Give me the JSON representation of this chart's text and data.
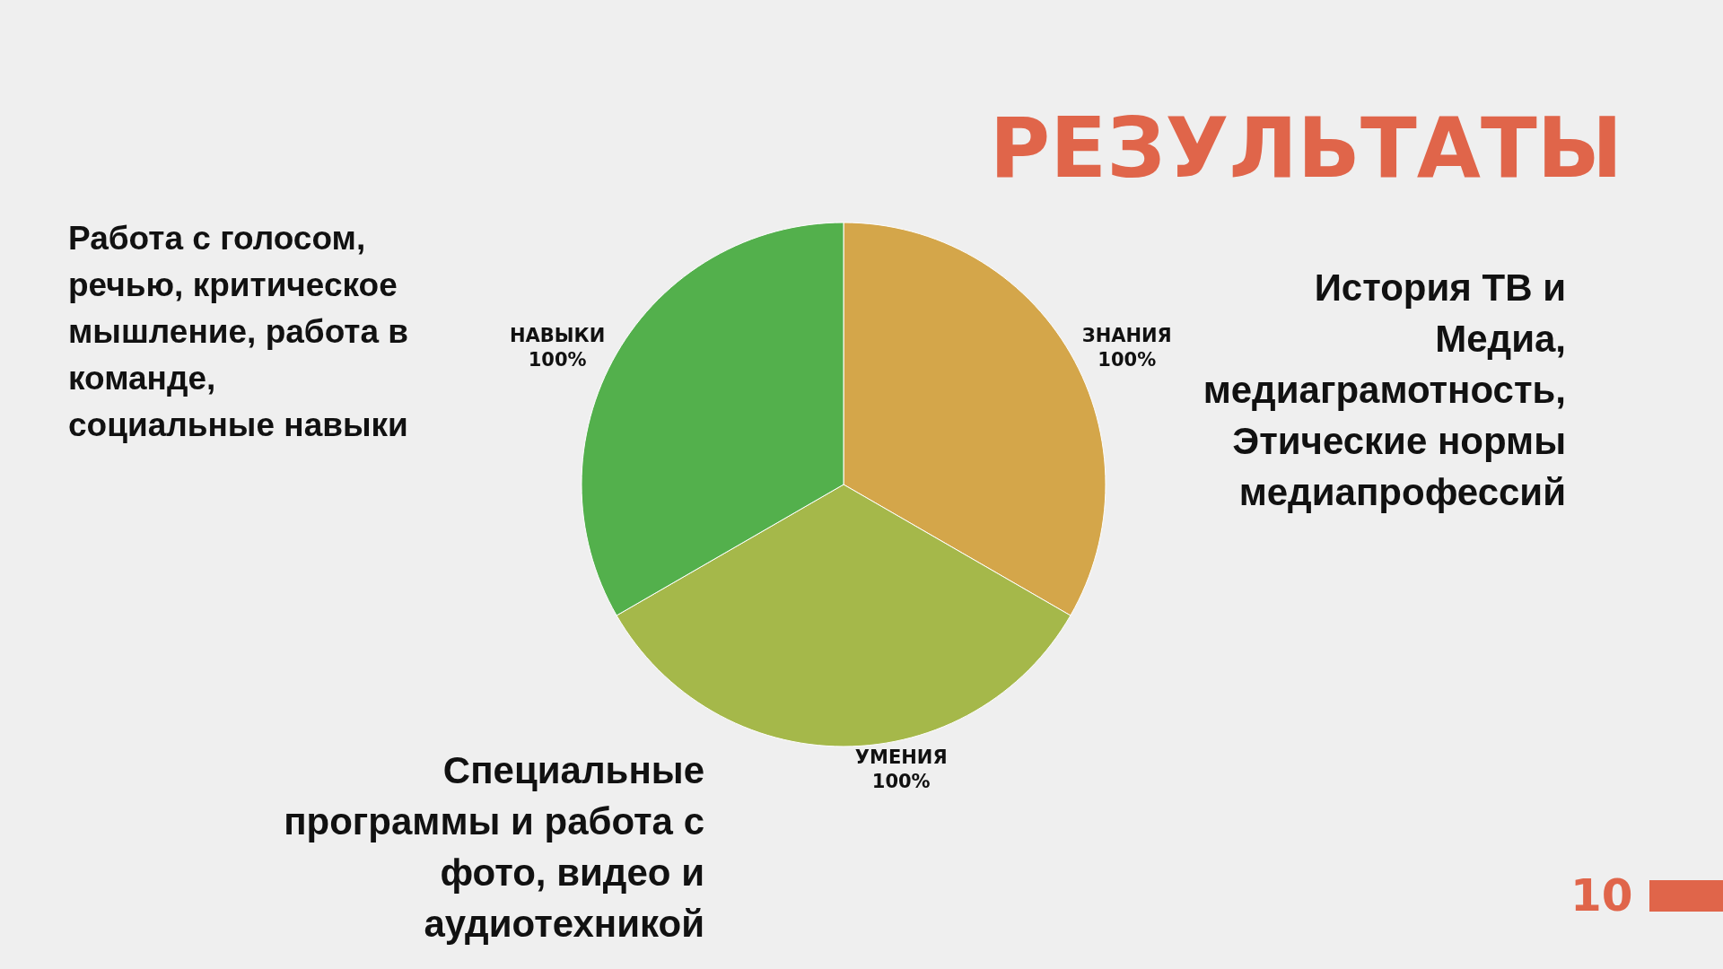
{
  "chart_data": {
    "type": "pie",
    "title": "РЕЗУЛЬТАТЫ",
    "categories": [
      "ЗНАНИЯ",
      "УМЕНИЯ",
      "НАВЫКИ"
    ],
    "values": [
      100,
      100,
      100
    ],
    "colors": [
      "#d4a64a",
      "#a5b84a",
      "#53b04c"
    ],
    "value_labels": [
      "100%",
      "100%",
      "100%"
    ],
    "legend": false,
    "annotations": [
      "Работа с голосом, речью, критическое мышление, работа в команде, социальные навыки",
      "История ТВ и Медиа, медиаграмотность, Этические нормы медиапрофессий",
      "Специальные программы и работа с фото, видео и аудиотехникой",
      "10"
    ]
  }
}
